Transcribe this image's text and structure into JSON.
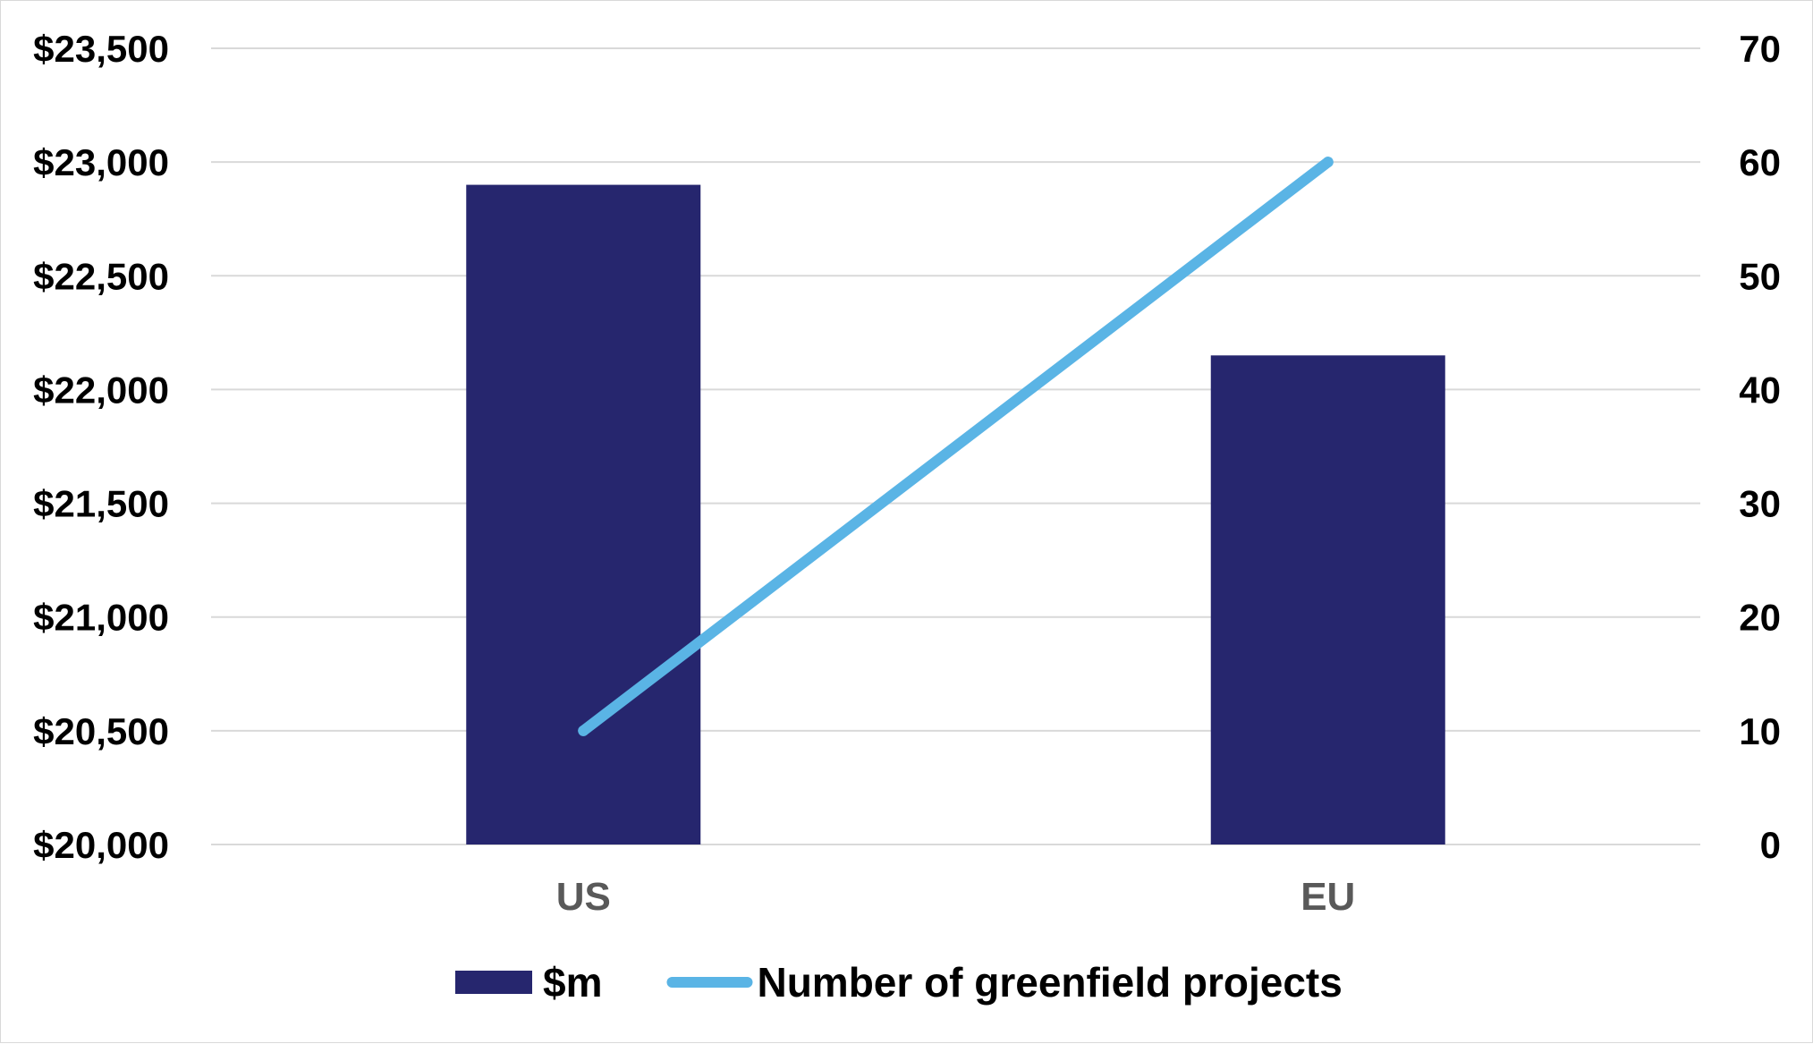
{
  "chart_data": {
    "type": "bar",
    "categories": [
      "US",
      "EU"
    ],
    "series": [
      {
        "name": "$m",
        "type": "bar",
        "axis": "left",
        "values": [
          22900,
          22150
        ],
        "color": "#26266e"
      },
      {
        "name": "Number of greenfield projects",
        "type": "line",
        "axis": "right",
        "values": [
          10,
          60
        ],
        "color": "#5ab4e5"
      }
    ],
    "y_left": {
      "ylim": [
        20000,
        23500
      ],
      "ticks": [
        20000,
        20500,
        21000,
        21500,
        22000,
        22500,
        23000,
        23500
      ],
      "tick_labels": [
        "$20,000",
        "$20,500",
        "$21,000",
        "$21,500",
        "$22,000",
        "$22,500",
        "$23,000",
        "$23,500"
      ]
    },
    "y_right": {
      "ylim": [
        0,
        70
      ],
      "ticks": [
        0,
        10,
        20,
        30,
        40,
        50,
        60,
        70
      ],
      "tick_labels": [
        "0",
        "10",
        "20",
        "30",
        "40",
        "50",
        "60",
        "70"
      ]
    },
    "grid": true,
    "gridline_color": "#d9d9d9",
    "legend_position": "bottom",
    "title": "",
    "xlabel": "",
    "ylabel": ""
  }
}
